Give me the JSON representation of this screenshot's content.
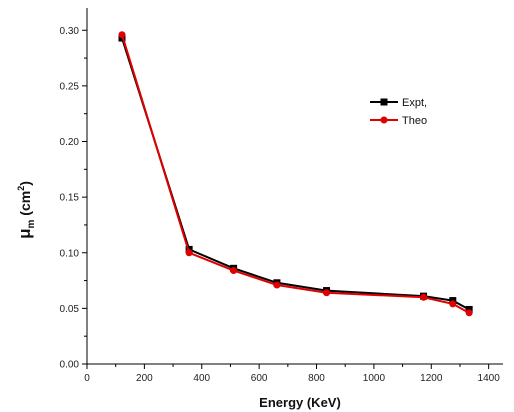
{
  "chart_data": {
    "type": "line",
    "xlabel": "Energy (KeV)",
    "ylabel": {
      "main": "μ",
      "sub": "m",
      "unit_open": " (cm",
      "unit_sup": "2",
      "unit_close": ")"
    },
    "xlim": [
      0,
      1450
    ],
    "ylim": [
      0,
      0.32
    ],
    "x_ticks": [
      0,
      200,
      400,
      600,
      800,
      1000,
      1200,
      1400
    ],
    "y_ticks": [
      0.0,
      0.05,
      0.1,
      0.15,
      0.2,
      0.25,
      0.3
    ],
    "y_tick_labels": [
      "0.00",
      "0.05",
      "0.10",
      "0.15",
      "0.20",
      "0.25",
      "0.30"
    ],
    "legend_position": "right",
    "grid": false,
    "series": [
      {
        "name": "Expt,",
        "color": "#000000",
        "marker": "square",
        "points": [
          [
            122,
            0.293
          ],
          [
            356,
            0.103
          ],
          [
            511,
            0.086
          ],
          [
            662,
            0.073
          ],
          [
            835,
            0.066
          ],
          [
            1173,
            0.061
          ],
          [
            1275,
            0.057
          ],
          [
            1332,
            0.049
          ]
        ]
      },
      {
        "name": "Theo",
        "color": "#e00000",
        "marker": "circle",
        "points": [
          [
            122,
            0.296
          ],
          [
            356,
            0.1
          ],
          [
            511,
            0.084
          ],
          [
            662,
            0.071
          ],
          [
            835,
            0.064
          ],
          [
            1173,
            0.06
          ],
          [
            1275,
            0.054
          ],
          [
            1332,
            0.046
          ]
        ]
      }
    ]
  }
}
